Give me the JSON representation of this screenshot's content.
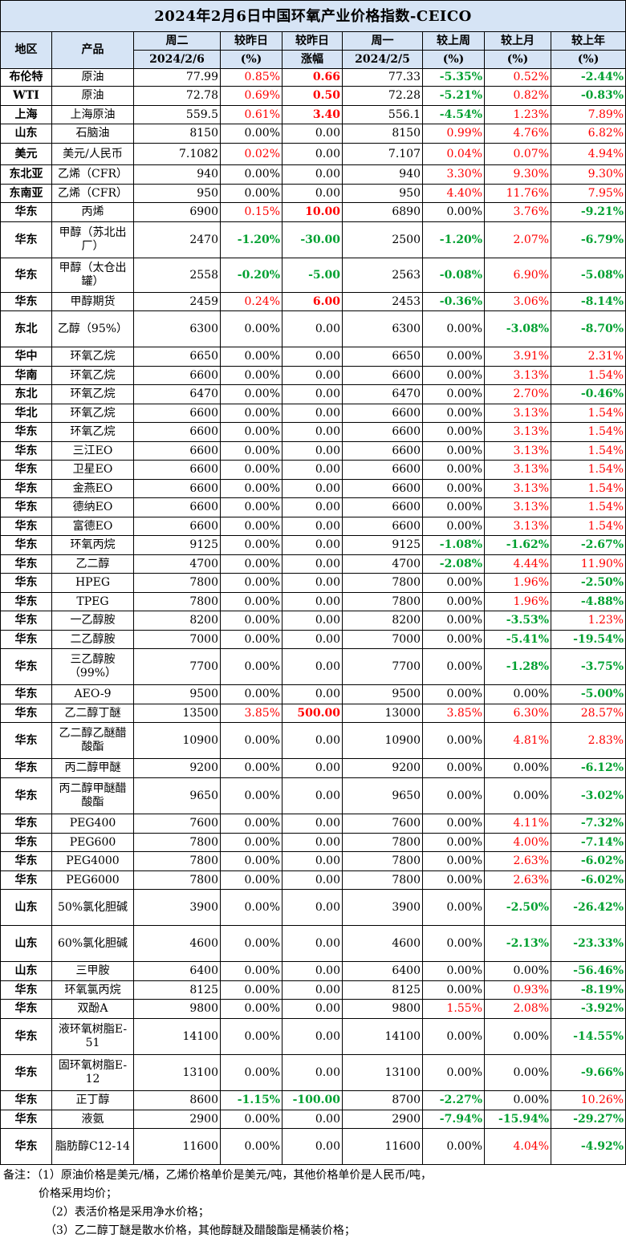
{
  "title": "2024年2月6日中国环氧产业价格指数-CEICO",
  "header": {
    "region": "地区",
    "product": "产品",
    "today_top": "周二",
    "today_date": "2024/2/6",
    "pct_day_top": "较昨日",
    "pct_day_unit": "(%)",
    "chg_day_top": "较昨日",
    "chg_day_bottom": "涨幅",
    "prev_top": "周一",
    "prev_date": "2024/2/5",
    "pct_week_top": "较上周",
    "pct_week_unit": "(%)",
    "pct_month_top": "较上月",
    "pct_month_unit": "(%)",
    "pct_year_top": "较上年",
    "pct_year_unit": "(%)"
  },
  "colors": {
    "header_bg": "#d6e4f5",
    "up": "#ff0000",
    "down": "#00a030"
  },
  "rows": [
    {
      "region": "布伦特",
      "product": "原油",
      "today": "77.99",
      "pct": "0.85%",
      "chg": "0.66",
      "prev": "77.33",
      "week": "-5.35%",
      "month": "0.52%",
      "year": "-2.44%",
      "h": 22
    },
    {
      "region": "WTI",
      "product": "原油",
      "today": "72.78",
      "pct": "0.69%",
      "chg": "0.50",
      "prev": "72.28",
      "week": "-5.21%",
      "month": "0.82%",
      "year": "-0.83%",
      "h": 24
    },
    {
      "region": "上海",
      "product": "上海原油",
      "today": "559.5",
      "pct": "0.61%",
      "chg": "3.40",
      "prev": "556.1",
      "week": "-4.54%",
      "month": "1.23%",
      "year": "7.89%",
      "h": 23
    },
    {
      "region": "山东",
      "product": "石脑油",
      "today": "8150",
      "pct": "0.00%",
      "chg": "0.00",
      "prev": "8150",
      "week": "0.99%",
      "month": "4.76%",
      "year": "6.82%",
      "h": 24
    },
    {
      "region": "美元",
      "product": "美元/人民币",
      "today": "7.1082",
      "pct": "0.02%",
      "chg": "0.00",
      "prev": "7.107",
      "week": "0.04%",
      "month": "0.07%",
      "year": "4.94%",
      "h": 27
    },
    {
      "region": "东北亚",
      "product": "乙烯（CFR）",
      "today": "940",
      "pct": "0.00%",
      "chg": "0.00",
      "prev": "940",
      "week": "3.30%",
      "month": "9.30%",
      "year": "9.30%",
      "h": 24
    },
    {
      "region": "东南亚",
      "product": "乙烯（CFR）",
      "today": "950",
      "pct": "0.00%",
      "chg": "0.00",
      "prev": "950",
      "week": "4.40%",
      "month": "11.76%",
      "year": "7.95%",
      "h": 23
    },
    {
      "region": "华东",
      "product": "丙烯",
      "today": "6900",
      "pct": "0.15%",
      "chg": "10.00",
      "prev": "6890",
      "week": "0.00%",
      "month": "3.76%",
      "year": "-9.21%",
      "h": 24
    },
    {
      "region": "华东",
      "product": "甲醇（苏北出厂）",
      "today": "2470",
      "pct": "-1.20%",
      "chg": "-30.00",
      "prev": "2500",
      "week": "-1.20%",
      "month": "2.07%",
      "year": "-6.79%",
      "h": 45
    },
    {
      "region": "华东",
      "product": "甲醇（太仓出罐）",
      "today": "2558",
      "pct": "-0.20%",
      "chg": "-5.00",
      "prev": "2563",
      "week": "-0.08%",
      "month": "6.90%",
      "year": "-5.08%",
      "h": 43
    },
    {
      "region": "华东",
      "product": "甲醇期货",
      "today": "2459",
      "pct": "0.24%",
      "chg": "6.00",
      "prev": "2453",
      "week": "-0.36%",
      "month": "3.06%",
      "year": "-8.14%",
      "h": 23
    },
    {
      "region": "东北",
      "product": "乙醇（95%）",
      "today": "6300",
      "pct": "0.00%",
      "chg": "0.00",
      "prev": "6300",
      "week": "0.00%",
      "month": "-3.08%",
      "year": "-8.70%",
      "h": 45
    },
    {
      "region": "华中",
      "product": "环氧乙烷",
      "today": "6650",
      "pct": "0.00%",
      "chg": "0.00",
      "prev": "6650",
      "week": "0.00%",
      "month": "3.91%",
      "year": "2.31%",
      "h": 24
    },
    {
      "region": "华南",
      "product": "环氧乙烷",
      "today": "6600",
      "pct": "0.00%",
      "chg": "0.00",
      "prev": "6600",
      "week": "0.00%",
      "month": "3.13%",
      "year": "1.54%",
      "h": 23
    },
    {
      "region": "东北",
      "product": "环氧乙烷",
      "today": "6470",
      "pct": "0.00%",
      "chg": "0.00",
      "prev": "6470",
      "week": "0.00%",
      "month": "2.70%",
      "year": "-0.46%",
      "h": 24
    },
    {
      "region": "华北",
      "product": "环氧乙烷",
      "today": "6600",
      "pct": "0.00%",
      "chg": "0.00",
      "prev": "6600",
      "week": "0.00%",
      "month": "3.13%",
      "year": "1.54%",
      "h": 23
    },
    {
      "region": "华东",
      "product": "环氧乙烷",
      "today": "6600",
      "pct": "0.00%",
      "chg": "0.00",
      "prev": "6600",
      "week": "0.00%",
      "month": "3.13%",
      "year": "1.54%",
      "h": 24
    },
    {
      "region": "华东",
      "product": "三江EO",
      "today": "6600",
      "pct": "0.00%",
      "chg": "0.00",
      "prev": "6600",
      "week": "0.00%",
      "month": "3.13%",
      "year": "1.54%",
      "h": 23
    },
    {
      "region": "华东",
      "product": "卫星EO",
      "today": "6600",
      "pct": "0.00%",
      "chg": "0.00",
      "prev": "6600",
      "week": "0.00%",
      "month": "3.13%",
      "year": "1.54%",
      "h": 24
    },
    {
      "region": "华东",
      "product": "金燕EO",
      "today": "6600",
      "pct": "0.00%",
      "chg": "0.00",
      "prev": "6600",
      "week": "0.00%",
      "month": "3.13%",
      "year": "1.54%",
      "h": 23
    },
    {
      "region": "华东",
      "product": "德纳EO",
      "today": "6600",
      "pct": "0.00%",
      "chg": "0.00",
      "prev": "6600",
      "week": "0.00%",
      "month": "3.13%",
      "year": "1.54%",
      "h": 24
    },
    {
      "region": "华东",
      "product": "富德EO",
      "today": "6600",
      "pct": "0.00%",
      "chg": "0.00",
      "prev": "6600",
      "week": "0.00%",
      "month": "3.13%",
      "year": "1.54%",
      "h": 23
    },
    {
      "region": "华东",
      "product": "环氧丙烷",
      "today": "9125",
      "pct": "0.00%",
      "chg": "0.00",
      "prev": "9125",
      "week": "-1.08%",
      "month": "-1.62%",
      "year": "-2.67%",
      "h": 24
    },
    {
      "region": "华东",
      "product": "乙二醇",
      "today": "4700",
      "pct": "0.00%",
      "chg": "0.00",
      "prev": "4700",
      "week": "-2.08%",
      "month": "4.44%",
      "year": "11.90%",
      "h": 23
    },
    {
      "region": "华东",
      "product": "HPEG",
      "today": "7800",
      "pct": "0.00%",
      "chg": "0.00",
      "prev": "7800",
      "week": "0.00%",
      "month": "1.96%",
      "year": "-2.50%",
      "h": 24
    },
    {
      "region": "华东",
      "product": "TPEG",
      "today": "7800",
      "pct": "0.00%",
      "chg": "0.00",
      "prev": "7800",
      "week": "0.00%",
      "month": "1.96%",
      "year": "-4.88%",
      "h": 23
    },
    {
      "region": "华东",
      "product": "一乙醇胺",
      "today": "8200",
      "pct": "0.00%",
      "chg": "0.00",
      "prev": "8200",
      "week": "0.00%",
      "month": "-3.53%",
      "year": "1.23%",
      "h": 24
    },
    {
      "region": "华东",
      "product": "二乙醇胺",
      "today": "7000",
      "pct": "0.00%",
      "chg": "0.00",
      "prev": "7000",
      "week": "0.00%",
      "month": "-5.41%",
      "year": "-19.54%",
      "h": 23
    },
    {
      "region": "华东",
      "product": "三乙醇胺（99%）",
      "today": "7700",
      "pct": "0.00%",
      "chg": "0.00",
      "prev": "7700",
      "week": "0.00%",
      "month": "-1.28%",
      "year": "-3.75%",
      "h": 45
    },
    {
      "region": "华东",
      "product": "AEO-9",
      "today": "9500",
      "pct": "0.00%",
      "chg": "0.00",
      "prev": "9500",
      "week": "0.00%",
      "month": "0.00%",
      "year": "-5.00%",
      "h": 24
    },
    {
      "region": "华东",
      "product": "乙二醇丁醚",
      "today": "13500",
      "pct": "3.85%",
      "chg": "500.00",
      "prev": "13000",
      "week": "3.85%",
      "month": "6.30%",
      "year": "28.57%",
      "h": 23
    },
    {
      "region": "华东",
      "product": "乙二醇乙醚醋酸酯",
      "today": "10900",
      "pct": "0.00%",
      "chg": "0.00",
      "prev": "10900",
      "week": "0.00%",
      "month": "4.81%",
      "year": "2.83%",
      "h": 45
    },
    {
      "region": "华东",
      "product": "丙二醇甲醚",
      "today": "9200",
      "pct": "0.00%",
      "chg": "0.00",
      "prev": "9200",
      "week": "0.00%",
      "month": "0.00%",
      "year": "-6.12%",
      "h": 24
    },
    {
      "region": "华东",
      "product": "丙二醇甲醚醋酸酯",
      "today": "9650",
      "pct": "0.00%",
      "chg": "0.00",
      "prev": "9650",
      "week": "0.00%",
      "month": "0.00%",
      "year": "-3.02%",
      "h": 45
    },
    {
      "region": "华东",
      "product": "PEG400",
      "today": "7600",
      "pct": "0.00%",
      "chg": "0.00",
      "prev": "7600",
      "week": "0.00%",
      "month": "4.11%",
      "year": "-7.32%",
      "h": 24
    },
    {
      "region": "华东",
      "product": "PEG600",
      "today": "7800",
      "pct": "0.00%",
      "chg": "0.00",
      "prev": "7800",
      "week": "0.00%",
      "month": "4.00%",
      "year": "-7.14%",
      "h": 23
    },
    {
      "region": "华东",
      "product": "PEG4000",
      "today": "7800",
      "pct": "0.00%",
      "chg": "0.00",
      "prev": "7800",
      "week": "0.00%",
      "month": "2.63%",
      "year": "-6.02%",
      "h": 24
    },
    {
      "region": "华东",
      "product": "PEG6000",
      "today": "7800",
      "pct": "0.00%",
      "chg": "0.00",
      "prev": "7800",
      "week": "0.00%",
      "month": "2.63%",
      "year": "-6.02%",
      "h": 23
    },
    {
      "region": "山东",
      "product": "50%氯化胆碱",
      "today": "3900",
      "pct": "0.00%",
      "chg": "0.00",
      "prev": "3900",
      "week": "0.00%",
      "month": "-2.50%",
      "year": "-26.42%",
      "h": 45
    },
    {
      "region": "山东",
      "product": "60%氯化胆碱",
      "today": "4600",
      "pct": "0.00%",
      "chg": "0.00",
      "prev": "4600",
      "week": "0.00%",
      "month": "-2.13%",
      "year": "-23.33%",
      "h": 45
    },
    {
      "region": "山东",
      "product": "三甲胺",
      "today": "6400",
      "pct": "0.00%",
      "chg": "0.00",
      "prev": "6400",
      "week": "0.00%",
      "month": "0.00%",
      "year": "-56.46%",
      "h": 24
    },
    {
      "region": "华东",
      "product": "环氧氯丙烷",
      "today": "8125",
      "pct": "0.00%",
      "chg": "0.00",
      "prev": "8125",
      "week": "0.00%",
      "month": "0.93%",
      "year": "-8.19%",
      "h": 23
    },
    {
      "region": "华东",
      "product": "双酚A",
      "today": "9800",
      "pct": "0.00%",
      "chg": "0.00",
      "prev": "9800",
      "week": "1.55%",
      "month": "2.08%",
      "year": "-3.92%",
      "h": 24
    },
    {
      "region": "华东",
      "product": "液环氧树脂E-51",
      "today": "14100",
      "pct": "0.00%",
      "chg": "0.00",
      "prev": "14100",
      "week": "0.00%",
      "month": "0.00%",
      "year": "-14.55%",
      "h": 45
    },
    {
      "region": "华东",
      "product": "固环氧树脂E-12",
      "today": "13100",
      "pct": "0.00%",
      "chg": "0.00",
      "prev": "13100",
      "week": "0.00%",
      "month": "0.00%",
      "year": "-9.66%",
      "h": 45
    },
    {
      "region": "华东",
      "product": "正丁醇",
      "today": "8600",
      "pct": "-1.15%",
      "chg": "-100.00",
      "prev": "8700",
      "week": "-2.27%",
      "month": "0.00%",
      "year": "10.26%",
      "h": 24
    },
    {
      "region": "华东",
      "product": "液氨",
      "today": "2900",
      "pct": "0.00%",
      "chg": "0.00",
      "prev": "2900",
      "week": "-7.94%",
      "month": "-15.94%",
      "year": "-29.27%",
      "h": 23
    },
    {
      "region": "华东",
      "product": "脂肪醇C12-14",
      "today": "11600",
      "pct": "0.00%",
      "chg": "0.00",
      "prev": "11600",
      "week": "0.00%",
      "month": "4.04%",
      "year": "-4.92%",
      "h": 45
    }
  ],
  "notes": [
    "备注：（1）原油价格是美元/桶，乙烯价格单价是美元/吨，其他价格单价是人民币/吨，",
    "价格采用均价；",
    "（2）表活价格是采用净水价格；",
    "（3）乙二醇丁醚是散水价格，其他醇醚及醋酸酯是桶装价格；"
  ]
}
